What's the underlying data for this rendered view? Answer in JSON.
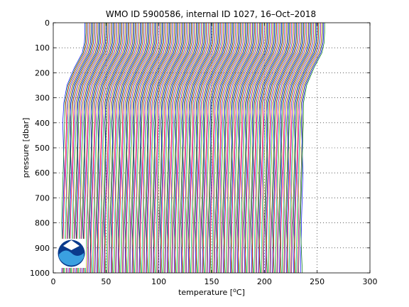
{
  "chart_data": {
    "type": "line",
    "title": "WMO ID 5900586, internal ID 1027, 16–Oct–2018",
    "xlabel_prefix": "temperature [",
    "xlabel_sup": "o",
    "xlabel_suffix": "C]",
    "ylabel": "pressure [dbar]",
    "xlim": [
      0,
      300
    ],
    "ylim": [
      0,
      1000
    ],
    "y_reversed": true,
    "grid": "dotted",
    "xticks": [
      "0",
      "50",
      "100",
      "150",
      "200",
      "250",
      "300"
    ],
    "yticks": [
      "0",
      "100",
      "200",
      "300",
      "400",
      "500",
      "600",
      "700",
      "800",
      "900",
      "1000"
    ],
    "profile_count": 240,
    "profile_offset_start": 0,
    "profile_offset_step": 0.95,
    "profile_shape": {
      "pressure": [
        0,
        40,
        80,
        120,
        180,
        250,
        320,
        400,
        600,
        800,
        1000
      ],
      "temperature": [
        30,
        30,
        29.5,
        27.5,
        20,
        13,
        10,
        9,
        8,
        7,
        6.5
      ]
    },
    "series_colors": [
      "#0000ff",
      "#008000",
      "#ff0000",
      "#00bfbf",
      "#bf00bf",
      "#bfbf00",
      "#404040"
    ],
    "logo": "noaa-logo"
  }
}
